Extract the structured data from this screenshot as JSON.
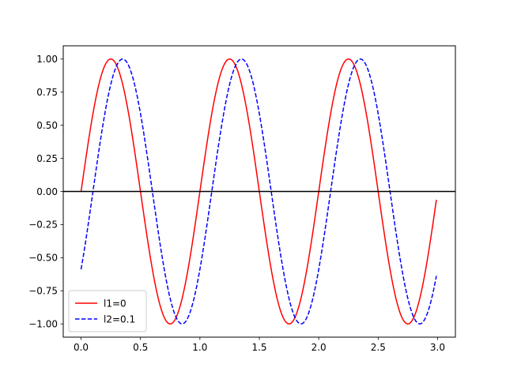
{
  "chart_data": {
    "type": "line",
    "title": "",
    "xlabel": "",
    "ylabel": "",
    "xlim": [
      -0.15,
      3.15
    ],
    "ylim": [
      -1.1,
      1.1
    ],
    "xticks": [
      0.0,
      0.5,
      1.0,
      1.5,
      2.0,
      2.5,
      3.0
    ],
    "xtick_labels": [
      "0.0",
      "0.5",
      "1.0",
      "1.5",
      "2.0",
      "2.5",
      "3.0"
    ],
    "yticks": [
      -1.0,
      -0.75,
      -0.5,
      -0.25,
      0.0,
      0.25,
      0.5,
      0.75,
      1.0
    ],
    "ytick_labels": [
      "−1.00",
      "−0.75",
      "−0.50",
      "−0.25",
      "0.00",
      "0.25",
      "0.50",
      "0.75",
      "1.00"
    ],
    "grid": false,
    "legend_position": "lower-left",
    "x_range": [
      0.0,
      2.99
    ],
    "series": [
      {
        "name": "l1=0",
        "function": "sin(2*pi*x)",
        "color": "#ff0000",
        "linestyle": "solid"
      },
      {
        "name": "l2=0.1",
        "function": "sin(2*pi*(x - 0.1))",
        "color": "#0000ff",
        "linestyle": "dashed"
      }
    ],
    "hlines": [
      {
        "y": 0.0,
        "color": "#000000"
      }
    ]
  }
}
